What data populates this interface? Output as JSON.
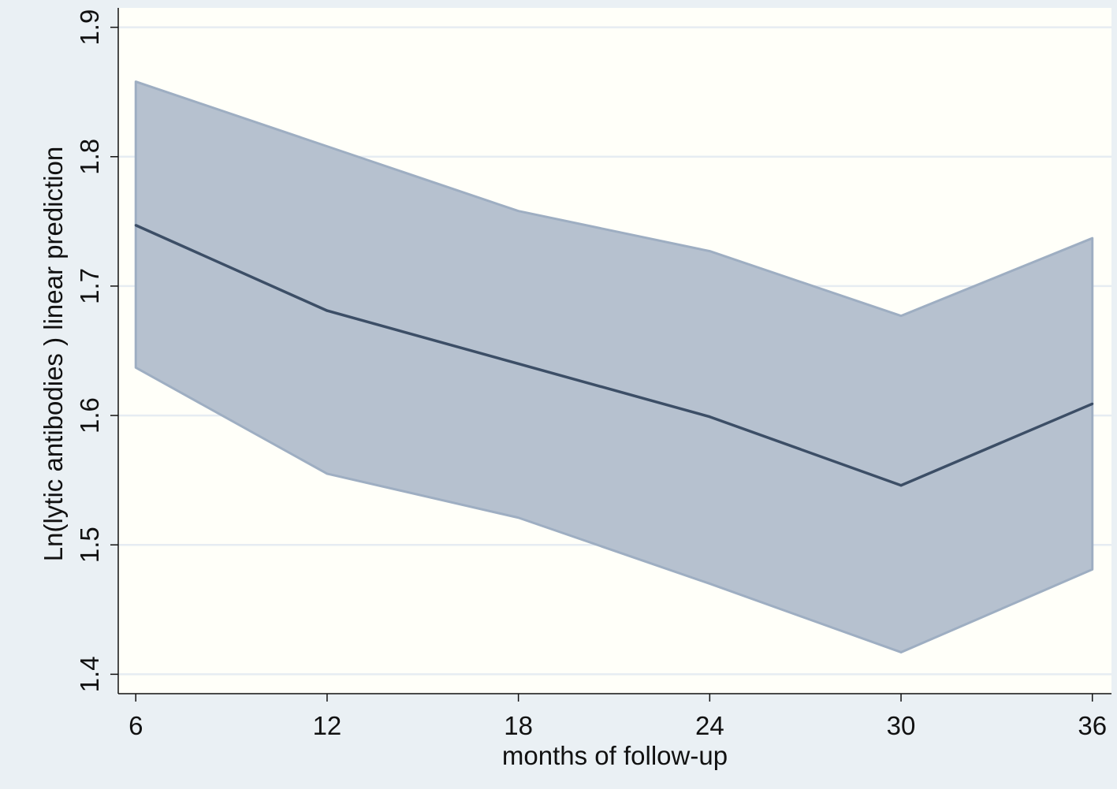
{
  "colors": {
    "outer_background": "#eaf0f4",
    "plot_background": "#fffff9",
    "gridline": "#e6ecf2",
    "ci_band_fill": "#b6c1cf",
    "ci_band_edge": "#9eaec2",
    "line": "#3c4e66",
    "axis": "#111111"
  },
  "chart_data": {
    "type": "line",
    "title": "",
    "xlabel": "months of follow-up",
    "ylabel": "Ln(lytic antibodies ) linear prediction",
    "x": [
      6,
      12,
      18,
      24,
      30,
      36
    ],
    "x_tick_labels": [
      "6",
      "12",
      "18",
      "24",
      "30",
      "36"
    ],
    "y_ticks": [
      1.4,
      1.5,
      1.6,
      1.7,
      1.8,
      1.9
    ],
    "y_tick_labels": [
      "1.4",
      "1.5",
      "1.6",
      "1.7",
      "1.8",
      "1.9"
    ],
    "xlim": [
      5.45,
      36.6
    ],
    "ylim": [
      1.385,
      1.915
    ],
    "grid": true,
    "legend": false,
    "series": [
      {
        "values": [
          1.747,
          1.681,
          1.64,
          1.599,
          1.546,
          1.609
        ]
      }
    ],
    "ci_band": {
      "lower": [
        1.637,
        1.555,
        1.521,
        1.47,
        1.417,
        1.481
      ],
      "upper": [
        1.858,
        1.808,
        1.758,
        1.727,
        1.677,
        1.737
      ]
    }
  }
}
